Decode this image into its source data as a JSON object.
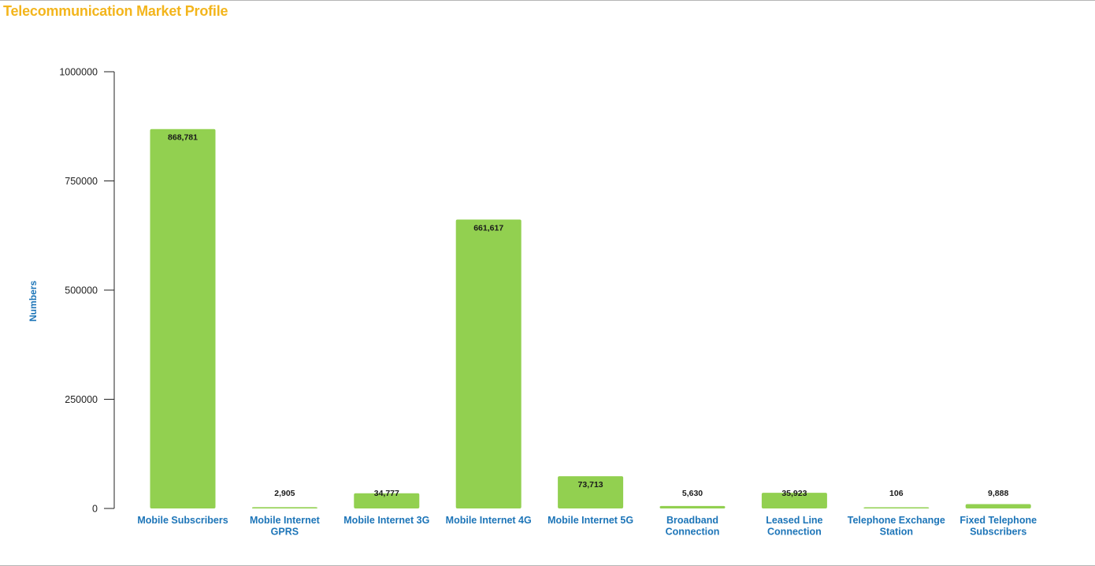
{
  "page": {
    "title": "Telecommunication Market Profile"
  },
  "colors": {
    "title": "#f3b51c",
    "bar": "#92d050",
    "category_label": "#1d75b8",
    "axis_label": "#1d75b8"
  },
  "chart_data": {
    "type": "bar",
    "title": "Telecommunication Market Profile",
    "xlabel": "",
    "ylabel": "Numbers",
    "ylim": [
      0,
      1000000
    ],
    "yticks": [
      0,
      250000,
      500000,
      750000,
      1000000
    ],
    "ytick_labels": [
      "0",
      "250000",
      "500000",
      "750000",
      "1000000"
    ],
    "grid": false,
    "legend": "none",
    "categories": [
      [
        "Mobile Subscribers"
      ],
      [
        "Mobile Internet",
        "GPRS"
      ],
      [
        "Mobile Internet 3G"
      ],
      [
        "Mobile Internet 4G"
      ],
      [
        "Mobile Internet 5G"
      ],
      [
        "Broadband",
        "Connection"
      ],
      [
        "Leased Line",
        "Connection"
      ],
      [
        "Telephone Exchange",
        "Station"
      ],
      [
        "Fixed Telephone",
        "Subscribers"
      ]
    ],
    "values": [
      868781,
      2905,
      34777,
      661617,
      73713,
      5630,
      35923,
      106,
      9888
    ],
    "value_labels": [
      "868,781",
      "2,905",
      "34,777",
      "661,617",
      "73,713",
      "5,630",
      "35,923",
      "106",
      "9,888"
    ]
  }
}
